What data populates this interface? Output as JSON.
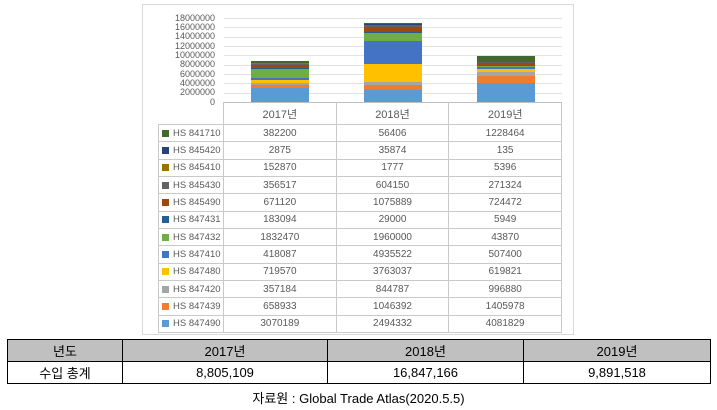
{
  "chart_data": {
    "type": "bar",
    "subtype": "stacked-column",
    "title": "",
    "categories": [
      "2017년",
      "2018년",
      "2019년"
    ],
    "series": [
      {
        "name": "HS 847490",
        "color": "#5B9BD5",
        "values": [
          3070189,
          2494332,
          4081829
        ]
      },
      {
        "name": "HS 847439",
        "color": "#ED7D31",
        "values": [
          658933,
          1046392,
          1405978
        ]
      },
      {
        "name": "HS 847420",
        "color": "#A5A5A5",
        "values": [
          357184,
          844787,
          996880
        ]
      },
      {
        "name": "HS 847480",
        "color": "#FFC000",
        "values": [
          719570,
          3763037,
          619821
        ]
      },
      {
        "name": "HS 847410",
        "color": "#4472C4",
        "values": [
          418087,
          4935522,
          507400
        ]
      },
      {
        "name": "HS 847432",
        "color": "#70AD47",
        "values": [
          1832470,
          1960000,
          43870
        ]
      },
      {
        "name": "HS 847431",
        "color": "#255E91",
        "values": [
          183094,
          29000,
          5949
        ]
      },
      {
        "name": "HS 845490",
        "color": "#9E480E",
        "values": [
          671120,
          1075889,
          724472
        ]
      },
      {
        "name": "HS 845430",
        "color": "#636363",
        "values": [
          356517,
          604150,
          271324
        ]
      },
      {
        "name": "HS 845410",
        "color": "#997300",
        "values": [
          152870,
          1777,
          5396
        ]
      },
      {
        "name": "HS 845420",
        "color": "#264478",
        "values": [
          2875,
          35874,
          135
        ]
      },
      {
        "name": "HS 841710",
        "color": "#43682B",
        "values": [
          382200,
          56406,
          1228464
        ]
      }
    ],
    "data_table_row_order_top_to_bottom": [
      "HS 841710",
      "HS 845420",
      "HS 845410",
      "HS 845430",
      "HS 845490",
      "HS 847431",
      "HS 847432",
      "HS 847410",
      "HS 847480",
      "HS 847420",
      "HS 847439",
      "HS 847490"
    ],
    "xlabel": "",
    "ylabel": "",
    "y_axis": {
      "min": 0,
      "max": 18000000,
      "step": 2000000
    },
    "grid": true,
    "legend_position": "data-table-left-keys"
  },
  "summary_table": {
    "header": [
      "년도",
      "2017년",
      "2018년",
      "2019년"
    ],
    "row_label": "수입 총계",
    "row_values": [
      "8,805,109",
      "16,847,166",
      "9,891,518"
    ]
  },
  "caption": "자료원 : Global Trade Atlas(2020.5.5)"
}
